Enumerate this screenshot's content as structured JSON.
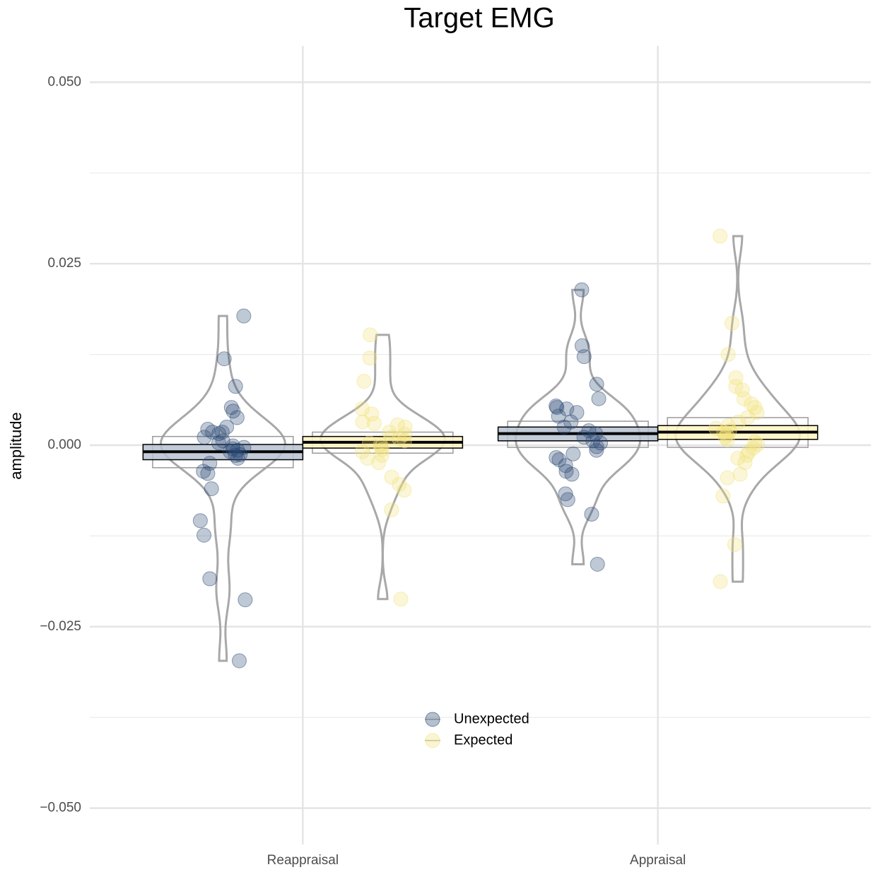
{
  "chart_data": {
    "type": "pirate",
    "title": "Target EMG",
    "y_label": "amplitude",
    "categories": [
      "Reappraisal",
      "Appraisal"
    ],
    "ylim": [
      -0.055,
      0.055
    ],
    "yticks": [
      {
        "value": -0.05,
        "label": "−0.050"
      },
      {
        "value": -0.025,
        "label": "−0.025"
      },
      {
        "value": 0,
        "label": "0.000"
      },
      {
        "value": 0.025,
        "label": "0.025"
      },
      {
        "value": 0.05,
        "label": "0.050"
      }
    ],
    "minor_yticks": [
      -0.0375,
      -0.0125,
      0.0125,
      0.0375
    ],
    "grid": true,
    "legend": "bottom-center",
    "series": [
      {
        "name": "Unexpected",
        "color": "#2b4a73",
        "box_color": "#b7c2d1",
        "values": [
          -0.0009,
          0.0016
        ],
        "inner": [
          [
            -0.002,
            0.0001
          ],
          [
            0.0006,
            0.0025
          ]
        ],
        "outer": [
          [
            -0.0031,
            0.0012
          ],
          [
            -0.0003,
            0.0033
          ]
        ],
        "points": [
          [
            0.0178,
            0.0119,
            0.0081,
            0.0052,
            0.0047,
            0.0038,
            0.0025,
            0.0022,
            0.0018,
            0.0018,
            0.0016,
            0.0011,
            0.0006,
            0.0003,
            -0.0001,
            -0.0003,
            -0.0005,
            -0.0007,
            -0.0009,
            -0.0013,
            -0.0014,
            -0.0018,
            -0.0025,
            -0.0036,
            -0.0039,
            -0.006,
            -0.0104,
            -0.0124,
            -0.0184,
            -0.0213,
            -0.0297
          ],
          [
            0.0214,
            0.0137,
            0.0122,
            0.0084,
            0.0064,
            0.0054,
            0.0052,
            0.005,
            0.0045,
            0.004,
            0.0032,
            0.0025,
            0.002,
            0.0016,
            0.0011,
            0.0006,
            0.0003,
            -0.0002,
            -0.0007,
            -0.0012,
            -0.0017,
            -0.002,
            -0.0028,
            -0.0036,
            -0.004,
            -0.0067,
            -0.0075,
            -0.0095,
            -0.0164
          ]
        ]
      },
      {
        "name": "Expected",
        "color": "#f2e27a",
        "box_color": "#fff5c0",
        "values": [
          0.0004,
          0.0018
        ],
        "inner": [
          [
            -0.0004,
            0.0012
          ],
          [
            0.0008,
            0.0027
          ]
        ],
        "outer": [
          [
            -0.0011,
            0.0018
          ],
          [
            -0.0003,
            0.0038
          ]
        ],
        "points": [
          [
            0.0152,
            0.012,
            0.0088,
            0.005,
            0.0043,
            0.0032,
            0.003,
            0.0028,
            0.0025,
            0.0018,
            0.0015,
            0.0011,
            0.0009,
            0.0006,
            0.0003,
            0.0001,
            -0.0003,
            -0.0006,
            -0.0009,
            -0.0014,
            -0.0018,
            -0.0024,
            -0.0044,
            -0.0054,
            -0.0062,
            -0.0089,
            -0.0212
          ],
          [
            0.0288,
            0.0168,
            0.0125,
            0.0093,
            0.0081,
            0.0076,
            0.0064,
            0.0057,
            0.0052,
            0.0045,
            0.0038,
            0.0032,
            0.0027,
            0.0023,
            0.002,
            0.0018,
            0.0014,
            0.0011,
            0.0007,
            0.0004,
            0.0001,
            -0.0004,
            -0.0009,
            -0.0014,
            -0.0018,
            -0.0024,
            -0.004,
            -0.0045,
            -0.007,
            -0.0137,
            -0.0188
          ]
        ]
      }
    ]
  }
}
